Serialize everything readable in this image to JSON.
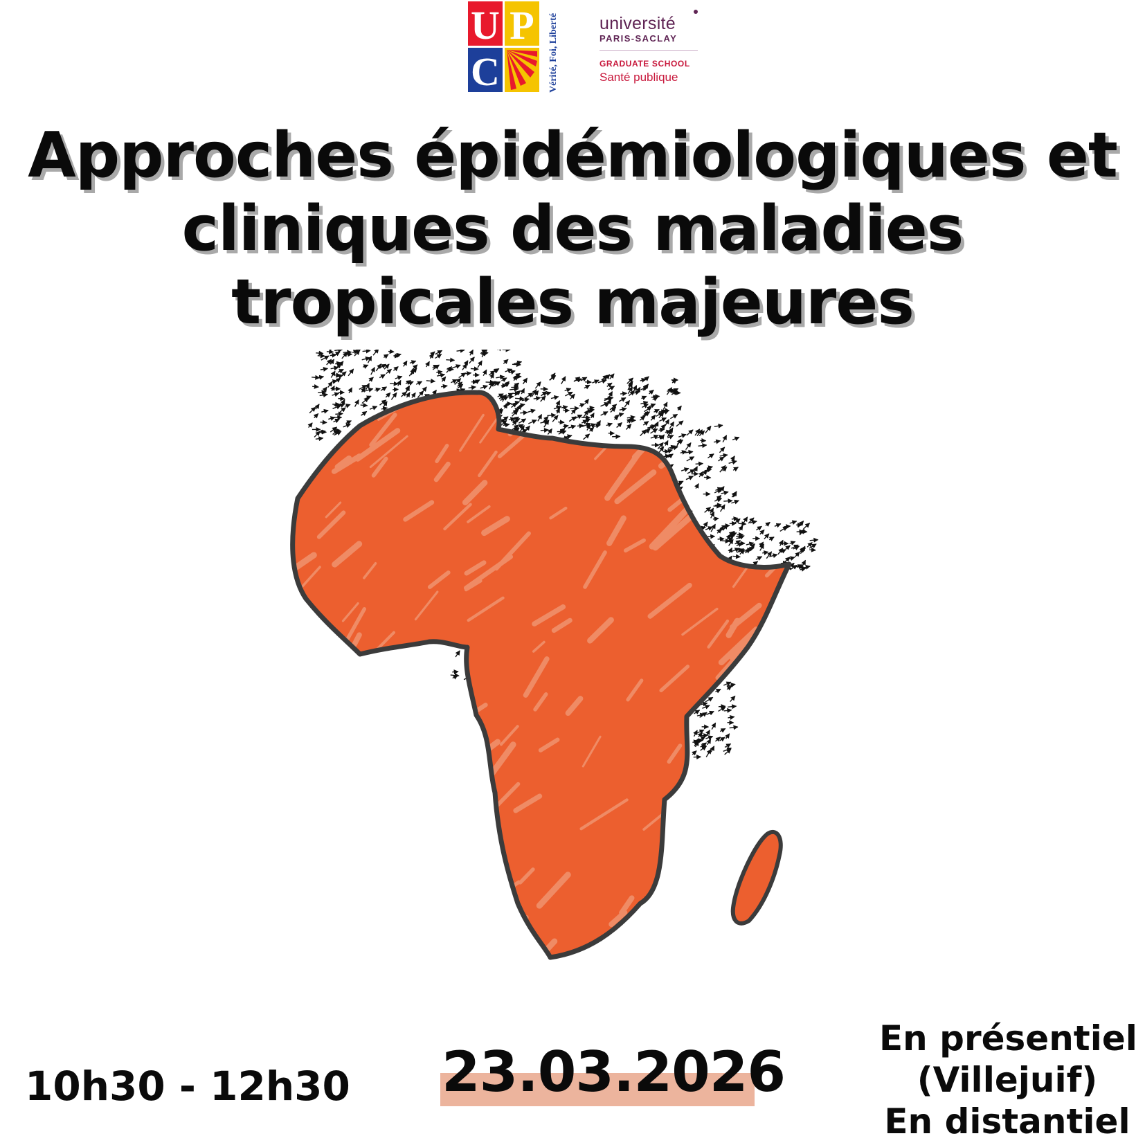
{
  "logos": {
    "upc": {
      "letters": [
        "U",
        "P",
        "C"
      ],
      "motto": "Vérité, Foi, Liberté",
      "colors": {
        "red": "#e8192c",
        "yellow": "#f5c400",
        "blue": "#1d3f9a"
      }
    },
    "paris_saclay": {
      "line1": "université",
      "line2": "PARIS-SACLAY",
      "line3": "GRADUATE SCHOOL",
      "line4": "Santé publique",
      "colors": {
        "purple": "#5f2454",
        "red": "#c8173b"
      }
    }
  },
  "title": {
    "line1": "Approches épidémiologiques et",
    "line2": "cliniques des maladies",
    "line3": "tropicales majeures"
  },
  "map": {
    "subject": "Africa",
    "icon": "africa-map-illustration",
    "colors": {
      "fill": "#ec5f2f",
      "light": "#f19a78",
      "outline": "#3b3b3b",
      "arrows": "#111111"
    }
  },
  "event": {
    "time": "10h30 - 12h30",
    "date": "23.03.2026",
    "date_highlight_color": "#ecb49d",
    "mode_line1": "En présentiel",
    "mode_line2": "(Villejuif)",
    "mode_line3": "En distantiel"
  }
}
